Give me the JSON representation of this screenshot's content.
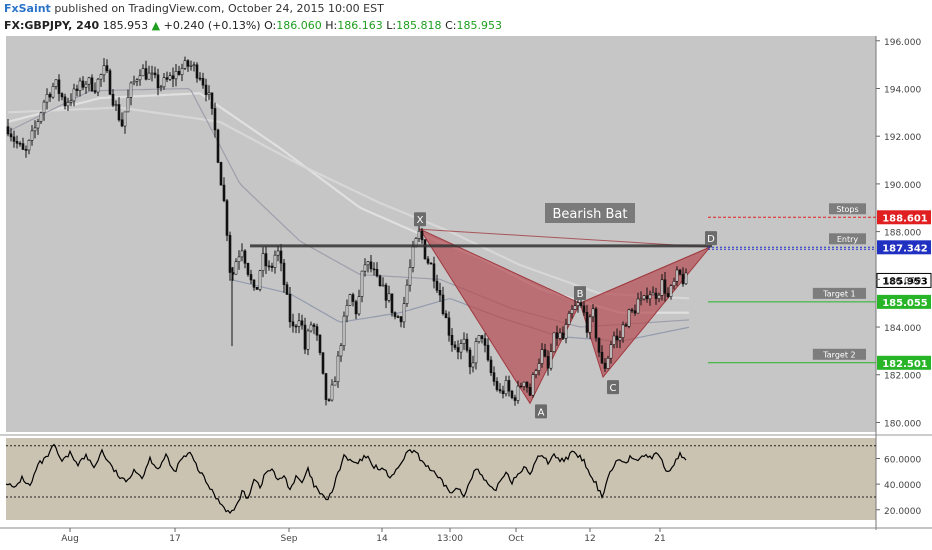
{
  "header": {
    "author": "FxSaint",
    "published_text": "published on TradingView.com, October 24, 2015 10:00 EST"
  },
  "ticker": {
    "symbol": "FX:GBPJPY, 240",
    "last": "185.953",
    "change_arrow": "▲",
    "change": "+0.240 (+0.13%)",
    "open_label": "O:",
    "open": "186.060",
    "high_label": "H:",
    "high": "186.163",
    "low_label": "L:",
    "low": "185.818",
    "close_label": "C:",
    "close": "185.953"
  },
  "colors": {
    "pane_bg": "#c6c6c6",
    "rsi_bg": "#cbc3b1",
    "candle": "#111111",
    "harmonic_fill": "#b44a50",
    "stops": "#e02020",
    "entry": "#2030c0",
    "target": "#27b427",
    "current": "#000000"
  },
  "chart_data": [
    {
      "type": "line",
      "title": "",
      "annotation": "Bearish Bat",
      "x_tick_labels": [
        "Aug",
        "17",
        "Sep",
        "14",
        "13:00",
        "Oct",
        "12",
        "21"
      ],
      "x_tick_positions": [
        70,
        175,
        289,
        382,
        450,
        516,
        590,
        660
      ],
      "ylim": [
        179.6,
        196.2
      ],
      "y_ticks": [
        180,
        182,
        184,
        186,
        188,
        190,
        192,
        194,
        196
      ],
      "y_tick_labels": [
        "180.000",
        "182.000",
        "184.000",
        "186.000",
        "188.000",
        "190.000",
        "192.000",
        "194.000",
        "196.000"
      ],
      "price_anchors": [
        [
          8,
          192.4
        ],
        [
          15,
          191.8
        ],
        [
          25,
          191.2
        ],
        [
          35,
          192.3
        ],
        [
          45,
          193.6
        ],
        [
          55,
          194.2
        ],
        [
          65,
          193.4
        ],
        [
          75,
          193.8
        ],
        [
          85,
          194.3
        ],
        [
          95,
          194.1
        ],
        [
          105,
          194.8
        ],
        [
          115,
          193.3
        ],
        [
          122,
          192.5
        ],
        [
          130,
          193.9
        ],
        [
          140,
          194.8
        ],
        [
          150,
          194.5
        ],
        [
          160,
          194.1
        ],
        [
          170,
          194.4
        ],
        [
          180,
          194.8
        ],
        [
          190,
          195.0
        ],
        [
          200,
          194.6
        ],
        [
          208,
          193.8
        ],
        [
          215,
          192.2
        ],
        [
          220,
          190.5
        ],
        [
          226,
          188.6
        ],
        [
          231,
          185.9
        ],
        [
          236,
          186.8
        ],
        [
          242,
          187.4
        ],
        [
          248,
          186.4
        ],
        [
          255,
          185.2
        ],
        [
          262,
          186.9
        ],
        [
          270,
          186.3
        ],
        [
          277,
          187.3
        ],
        [
          285,
          185.6
        ],
        [
          292,
          183.8
        ],
        [
          300,
          184.6
        ],
        [
          305,
          183.1
        ],
        [
          312,
          184.3
        ],
        [
          318,
          183.3
        ],
        [
          323,
          181.8
        ],
        [
          328,
          180.5
        ],
        [
          333,
          181.5
        ],
        [
          338,
          182.6
        ],
        [
          343,
          184.0
        ],
        [
          350,
          185.3
        ],
        [
          357,
          184.6
        ],
        [
          364,
          186.7
        ],
        [
          372,
          186.4
        ],
        [
          380,
          185.6
        ],
        [
          388,
          185.3
        ],
        [
          395,
          184.4
        ],
        [
          402,
          184.5
        ],
        [
          408,
          186.0
        ],
        [
          414,
          187.3
        ],
        [
          420,
          188.0
        ],
        [
          426,
          186.9
        ],
        [
          432,
          186.5
        ],
        [
          440,
          185.4
        ],
        [
          446,
          184.3
        ],
        [
          452,
          183.4
        ],
        [
          458,
          183.1
        ],
        [
          464,
          183.3
        ],
        [
          470,
          182.2
        ],
        [
          476,
          183.2
        ],
        [
          482,
          183.7
        ],
        [
          488,
          182.4
        ],
        [
          494,
          181.7
        ],
        [
          500,
          181.2
        ],
        [
          506,
          181.5
        ],
        [
          512,
          181.0
        ],
        [
          518,
          181.3
        ],
        [
          524,
          181.9
        ],
        [
          530,
          181.2
        ],
        [
          536,
          182.4
        ],
        [
          542,
          182.9
        ],
        [
          548,
          182.2
        ],
        [
          553,
          183.4
        ],
        [
          558,
          183.7
        ],
        [
          563,
          183.5
        ],
        [
          568,
          184.2
        ],
        [
          573,
          184.7
        ],
        [
          578,
          184.9
        ],
        [
          583,
          184.7
        ],
        [
          588,
          183.9
        ],
        [
          593,
          184.5
        ],
        [
          598,
          183.2
        ],
        [
          603,
          182.1
        ],
        [
          608,
          182.8
        ],
        [
          613,
          183.7
        ],
        [
          618,
          183.3
        ],
        [
          623,
          184.0
        ],
        [
          628,
          184.5
        ],
        [
          633,
          184.6
        ],
        [
          638,
          185.1
        ],
        [
          643,
          184.9
        ],
        [
          648,
          185.6
        ],
        [
          653,
          185.3
        ],
        [
          658,
          185.5
        ],
        [
          663,
          185.9
        ],
        [
          668,
          185.2
        ],
        [
          673,
          185.7
        ],
        [
          678,
          186.2
        ],
        [
          683,
          186.0
        ],
        [
          688,
          185.95
        ]
      ],
      "harmonic_pattern": {
        "name": "Bearish Bat",
        "points": [
          {
            "label": "X",
            "x": 420,
            "y": 188.1
          },
          {
            "label": "A",
            "x": 530,
            "y": 180.8
          },
          {
            "label": "B",
            "x": 580,
            "y": 185.0
          },
          {
            "label": "C",
            "x": 603,
            "y": 181.9
          },
          {
            "label": "D",
            "x": 710,
            "y": 187.35
          }
        ]
      },
      "resistance_line": {
        "y": 187.4,
        "x_start": 250
      },
      "levels": [
        {
          "name": "Stops",
          "value": 188.601,
          "label": "188.601",
          "color": "#e02020"
        },
        {
          "name": "Entry",
          "value": 187.342,
          "label": "187.342",
          "color": "#2030c0"
        },
        {
          "name": "",
          "value": 185.953,
          "label": "185.953",
          "color": "#000000"
        },
        {
          "name": "Target 1",
          "value": 185.055,
          "label": "185.055",
          "color": "#27b427"
        },
        {
          "name": "Target 2",
          "value": 182.501,
          "label": "182.501",
          "color": "#27b427"
        }
      ]
    },
    {
      "type": "line",
      "title": "",
      "ylim": [
        12,
        76
      ],
      "y_ticks": [
        20,
        40,
        60
      ],
      "y_tick_labels": [
        "20.0000",
        "40.0000",
        "60.0000"
      ],
      "bands": [
        30,
        70
      ],
      "rsi_anchors": [
        [
          6,
          42
        ],
        [
          14,
          36
        ],
        [
          22,
          45
        ],
        [
          30,
          38
        ],
        [
          38,
          55
        ],
        [
          46,
          60
        ],
        [
          54,
          70
        ],
        [
          62,
          57
        ],
        [
          70,
          64
        ],
        [
          78,
          56
        ],
        [
          86,
          62
        ],
        [
          94,
          53
        ],
        [
          102,
          66
        ],
        [
          110,
          55
        ],
        [
          118,
          47
        ],
        [
          126,
          41
        ],
        [
          134,
          52
        ],
        [
          142,
          45
        ],
        [
          150,
          60
        ],
        [
          158,
          52
        ],
        [
          166,
          62
        ],
        [
          174,
          49
        ],
        [
          182,
          60
        ],
        [
          190,
          64
        ],
        [
          198,
          52
        ],
        [
          206,
          42
        ],
        [
          214,
          32
        ],
        [
          222,
          24
        ],
        [
          230,
          17
        ],
        [
          236,
          22
        ],
        [
          242,
          34
        ],
        [
          248,
          29
        ],
        [
          254,
          45
        ],
        [
          260,
          38
        ],
        [
          266,
          49
        ],
        [
          272,
          52
        ],
        [
          278,
          42
        ],
        [
          284,
          47
        ],
        [
          290,
          36
        ],
        [
          296,
          45
        ],
        [
          302,
          41
        ],
        [
          308,
          51
        ],
        [
          314,
          39
        ],
        [
          320,
          33
        ],
        [
          326,
          27
        ],
        [
          332,
          34
        ],
        [
          338,
          48
        ],
        [
          344,
          62
        ],
        [
          350,
          58
        ],
        [
          358,
          56
        ],
        [
          366,
          62
        ],
        [
          374,
          54
        ],
        [
          382,
          52
        ],
        [
          390,
          46
        ],
        [
          398,
          51
        ],
        [
          406,
          64
        ],
        [
          414,
          66
        ],
        [
          422,
          58
        ],
        [
          430,
          52
        ],
        [
          438,
          45
        ],
        [
          446,
          38
        ],
        [
          452,
          33
        ],
        [
          458,
          37
        ],
        [
          464,
          30
        ],
        [
          470,
          44
        ],
        [
          476,
          52
        ],
        [
          482,
          46
        ],
        [
          488,
          39
        ],
        [
          494,
          34
        ],
        [
          500,
          42
        ],
        [
          506,
          50
        ],
        [
          512,
          42
        ],
        [
          518,
          48
        ],
        [
          524,
          54
        ],
        [
          530,
          46
        ],
        [
          536,
          60
        ],
        [
          542,
          62
        ],
        [
          548,
          57
        ],
        [
          554,
          64
        ],
        [
          560,
          58
        ],
        [
          566,
          60
        ],
        [
          572,
          64
        ],
        [
          578,
          62
        ],
        [
          584,
          58
        ],
        [
          590,
          46
        ],
        [
          596,
          40
        ],
        [
          602,
          30
        ],
        [
          608,
          46
        ],
        [
          614,
          55
        ],
        [
          620,
          60
        ],
        [
          626,
          58
        ],
        [
          632,
          62
        ],
        [
          638,
          57
        ],
        [
          644,
          63
        ],
        [
          650,
          60
        ],
        [
          656,
          65
        ],
        [
          662,
          58
        ],
        [
          668,
          48
        ],
        [
          674,
          56
        ],
        [
          680,
          64
        ],
        [
          686,
          58
        ]
      ]
    }
  ]
}
